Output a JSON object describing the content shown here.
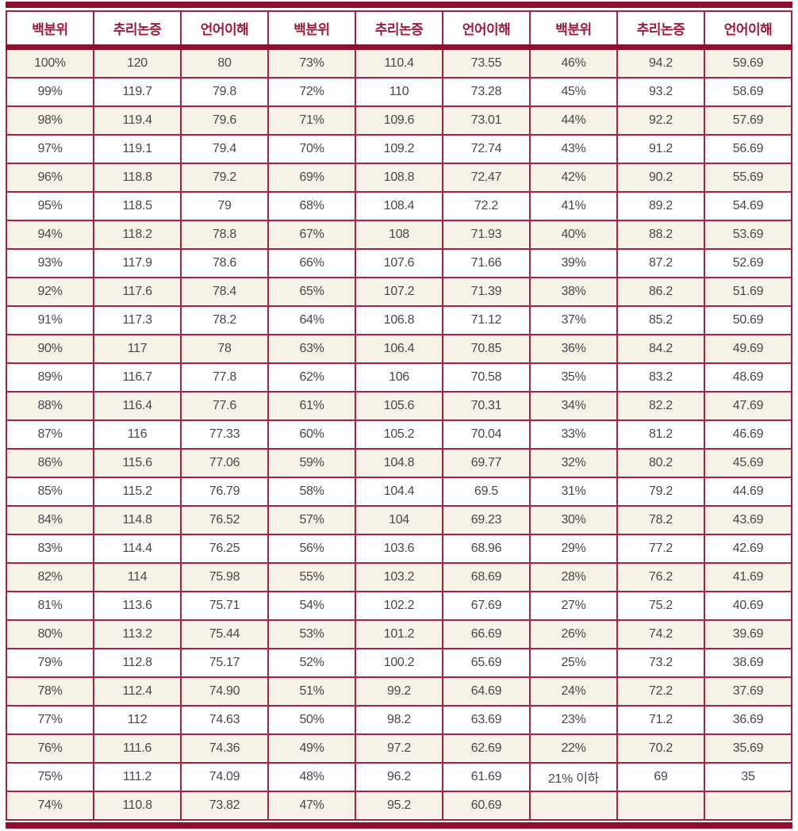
{
  "colors": {
    "thick_bar": "#8e102e",
    "grid_border": "#a32347",
    "header_text": "#9c1c3c",
    "cell_text": "#48484c",
    "stripe_beige": "#f7f2e7",
    "stripe_white": "#ffffff"
  },
  "table": {
    "columns": [
      "백분위",
      "추리논증",
      "언어이해",
      "백분위",
      "추리논증",
      "언어이해",
      "백분위",
      "추리논증",
      "언어이해"
    ],
    "rows": [
      [
        "100%",
        "120",
        "80",
        "73%",
        "110.4",
        "73.55",
        "46%",
        "94.2",
        "59.69"
      ],
      [
        "99%",
        "119.7",
        "79.8",
        "72%",
        "110",
        "73.28",
        "45%",
        "93.2",
        "58.69"
      ],
      [
        "98%",
        "119.4",
        "79.6",
        "71%",
        "109.6",
        "73.01",
        "44%",
        "92.2",
        "57.69"
      ],
      [
        "97%",
        "119.1",
        "79.4",
        "70%",
        "109.2",
        "72.74",
        "43%",
        "91.2",
        "56.69"
      ],
      [
        "96%",
        "118.8",
        "79.2",
        "69%",
        "108.8",
        "72.47",
        "42%",
        "90.2",
        "55.69"
      ],
      [
        "95%",
        "118.5",
        "79",
        "68%",
        "108.4",
        "72.2",
        "41%",
        "89.2",
        "54.69"
      ],
      [
        "94%",
        "118.2",
        "78.8",
        "67%",
        "108",
        "71.93",
        "40%",
        "88.2",
        "53.69"
      ],
      [
        "93%",
        "117.9",
        "78.6",
        "66%",
        "107.6",
        "71.66",
        "39%",
        "87.2",
        "52.69"
      ],
      [
        "92%",
        "117.6",
        "78.4",
        "65%",
        "107.2",
        "71.39",
        "38%",
        "86.2",
        "51.69"
      ],
      [
        "91%",
        "117.3",
        "78.2",
        "64%",
        "106.8",
        "71.12",
        "37%",
        "85.2",
        "50.69"
      ],
      [
        "90%",
        "117",
        "78",
        "63%",
        "106.4",
        "70.85",
        "36%",
        "84.2",
        "49.69"
      ],
      [
        "89%",
        "116.7",
        "77.8",
        "62%",
        "106",
        "70.58",
        "35%",
        "83.2",
        "48.69"
      ],
      [
        "88%",
        "116.4",
        "77.6",
        "61%",
        "105.6",
        "70.31",
        "34%",
        "82.2",
        "47.69"
      ],
      [
        "87%",
        "116",
        "77.33",
        "60%",
        "105.2",
        "70.04",
        "33%",
        "81.2",
        "46.69"
      ],
      [
        "86%",
        "115.6",
        "77.06",
        "59%",
        "104.8",
        "69.77",
        "32%",
        "80.2",
        "45.69"
      ],
      [
        "85%",
        "115.2",
        "76.79",
        "58%",
        "104.4",
        "69.5",
        "31%",
        "79.2",
        "44.69"
      ],
      [
        "84%",
        "114.8",
        "76.52",
        "57%",
        "104",
        "69.23",
        "30%",
        "78.2",
        "43.69"
      ],
      [
        "83%",
        "114.4",
        "76.25",
        "56%",
        "103.6",
        "68.96",
        "29%",
        "77.2",
        "42.69"
      ],
      [
        "82%",
        "114",
        "75.98",
        "55%",
        "103.2",
        "68.69",
        "28%",
        "76.2",
        "41.69"
      ],
      [
        "81%",
        "113.6",
        "75.71",
        "54%",
        "102.2",
        "67.69",
        "27%",
        "75.2",
        "40.69"
      ],
      [
        "80%",
        "113.2",
        "75.44",
        "53%",
        "101.2",
        "66.69",
        "26%",
        "74.2",
        "39.69"
      ],
      [
        "79%",
        "112.8",
        "75.17",
        "52%",
        "100.2",
        "65.69",
        "25%",
        "73.2",
        "38.69"
      ],
      [
        "78%",
        "112.4",
        "74.90",
        "51%",
        "99.2",
        "64.69",
        "24%",
        "72.2",
        "37.69"
      ],
      [
        "77%",
        "112",
        "74.63",
        "50%",
        "98.2",
        "63.69",
        "23%",
        "71.2",
        "36.69"
      ],
      [
        "76%",
        "111.6",
        "74.36",
        "49%",
        "97.2",
        "62.69",
        "22%",
        "70.2",
        "35.69"
      ],
      [
        "75%",
        "111.2",
        "74.09",
        "48%",
        "96.2",
        "61.69",
        "21% 이하",
        "69",
        "35"
      ],
      [
        "74%",
        "110.8",
        "73.82",
        "47%",
        "95.2",
        "60.69",
        "",
        "",
        ""
      ]
    ]
  }
}
